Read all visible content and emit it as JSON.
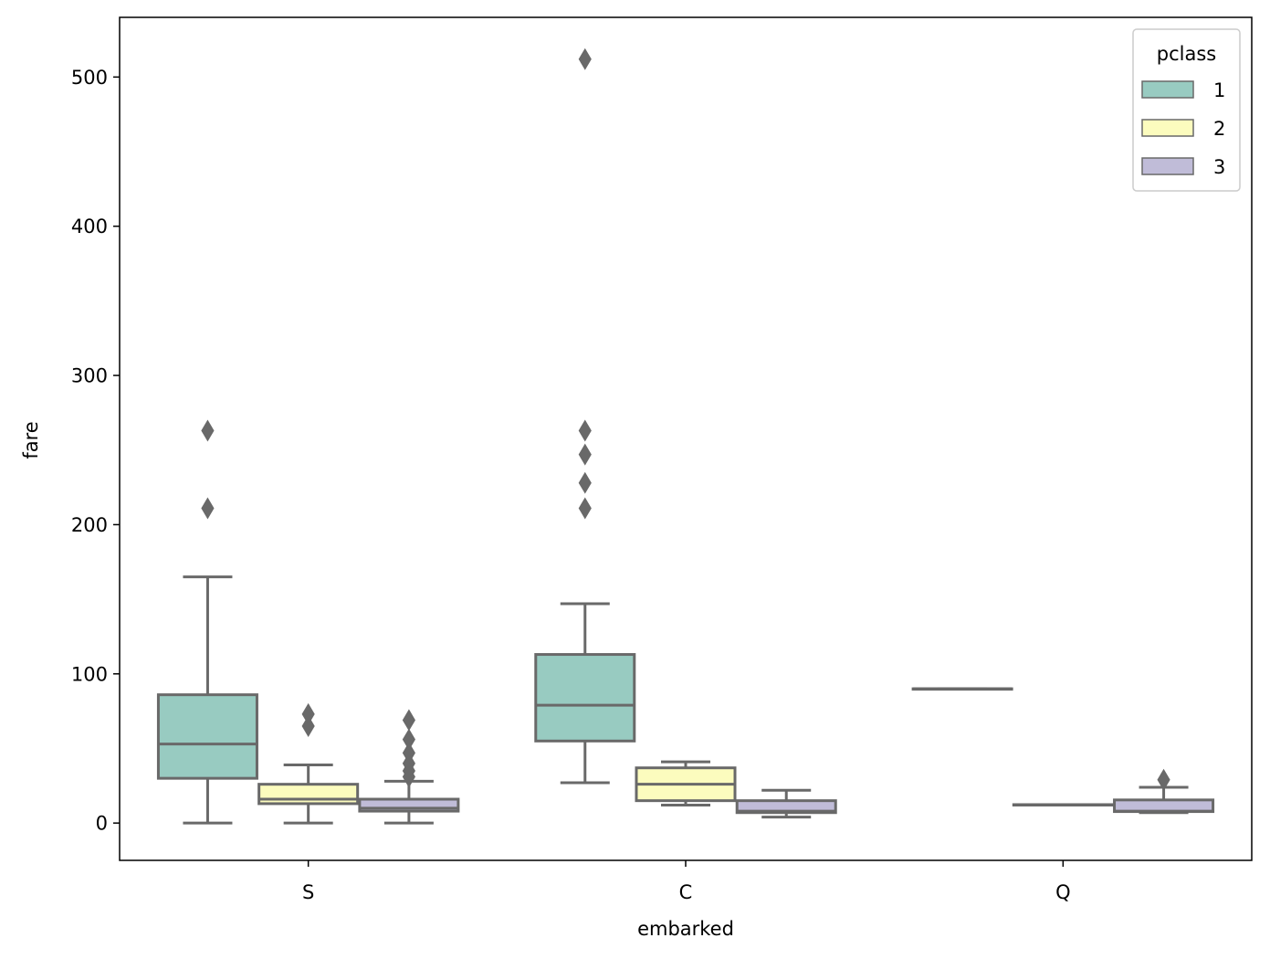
{
  "chart_data": {
    "type": "boxplot",
    "xlabel": "embarked",
    "ylabel": "fare",
    "categories": [
      "S",
      "C",
      "Q"
    ],
    "ylim": [
      -25,
      540
    ],
    "yticks": [
      0,
      100,
      200,
      300,
      400,
      500
    ],
    "grid": false,
    "legend": {
      "title": "pclass",
      "placement": "top-right",
      "entries": [
        "1",
        "2",
        "3"
      ]
    },
    "colors": {
      "1": "#98cbc1",
      "2": "#fcfcbe",
      "3": "#c0bcd8",
      "line": "#696969"
    },
    "series": [
      {
        "name": "1",
        "boxes": [
          {
            "category": "S",
            "whisker_low": 0,
            "q1": 30,
            "median": 53,
            "q3": 86,
            "whisker_high": 165,
            "outliers": [
              211,
              263
            ]
          },
          {
            "category": "C",
            "whisker_low": 27,
            "q1": 55,
            "median": 79,
            "q3": 113,
            "whisker_high": 147,
            "outliers": [
              211,
              228,
              247,
              263,
              512
            ]
          },
          {
            "category": "Q",
            "whisker_low": 90,
            "q1": 90,
            "median": 90,
            "q3": 90,
            "whisker_high": 90,
            "outliers": []
          }
        ]
      },
      {
        "name": "2",
        "boxes": [
          {
            "category": "S",
            "whisker_low": 0,
            "q1": 13,
            "median": 16,
            "q3": 26,
            "whisker_high": 39,
            "outliers": [
              65,
              73
            ]
          },
          {
            "category": "C",
            "whisker_low": 12,
            "q1": 15,
            "median": 26,
            "q3": 37,
            "whisker_high": 41,
            "outliers": []
          },
          {
            "category": "Q",
            "whisker_low": 12.35,
            "q1": 12.35,
            "median": 12.35,
            "q3": 12.35,
            "whisker_high": 12.35,
            "outliers": []
          }
        ]
      },
      {
        "name": "3",
        "boxes": [
          {
            "category": "S",
            "whisker_low": 0,
            "q1": 8,
            "median": 10,
            "q3": 16,
            "whisker_high": 28,
            "outliers": [
              31,
              35,
              40,
              47,
              56,
              69
            ]
          },
          {
            "category": "C",
            "whisker_low": 4,
            "q1": 7,
            "median": 8,
            "q3": 15,
            "whisker_high": 22,
            "outliers": []
          },
          {
            "category": "Q",
            "whisker_low": 7,
            "q1": 7.7,
            "median": 8,
            "q3": 15.5,
            "whisker_high": 24,
            "outliers": [
              29
            ]
          }
        ]
      }
    ]
  }
}
